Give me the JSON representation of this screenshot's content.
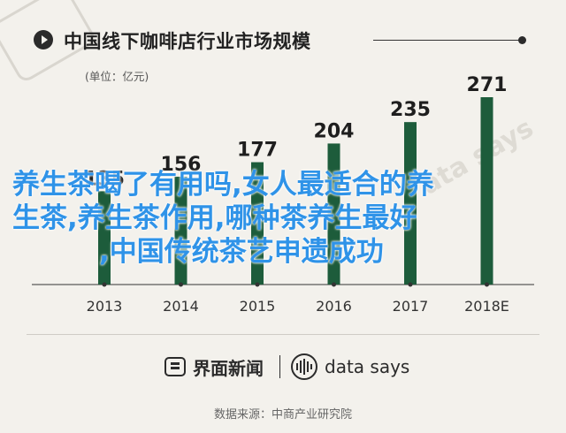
{
  "header": {
    "title": "中国线下咖啡店行业市场规模",
    "unit": "(单位：亿元)"
  },
  "chart_data": {
    "type": "bar",
    "title": "中国线下咖啡店行业市场规模",
    "ylabel": "(单位：亿元)",
    "categories": [
      "2013",
      "2014",
      "2015",
      "2016",
      "2017",
      "2018E"
    ],
    "values": [
      135,
      156,
      177,
      204,
      235,
      271
    ],
    "bar_color": "#1d5c3b",
    "ylim": [
      0,
      280
    ],
    "grid": false,
    "legend": "none"
  },
  "overlay": {
    "line1": "养生茶喝了有用吗,女人最适合的养",
    "line2": "生茶,养生茶作用,哪种茶养生最好",
    "line3": ",中国传统茶艺申遗成功",
    "color": "#2f93e8"
  },
  "footer": {
    "brand1": "界面新闻",
    "brand1_icon": "jiemian-logo-icon",
    "brand2": "data says",
    "brand2_icon": "data-says-logo-icon",
    "source": "数据来源：中商产业研究院"
  },
  "colors": {
    "background": "#f3f1ec",
    "bar": "#1d5c3b",
    "text": "#222222"
  }
}
